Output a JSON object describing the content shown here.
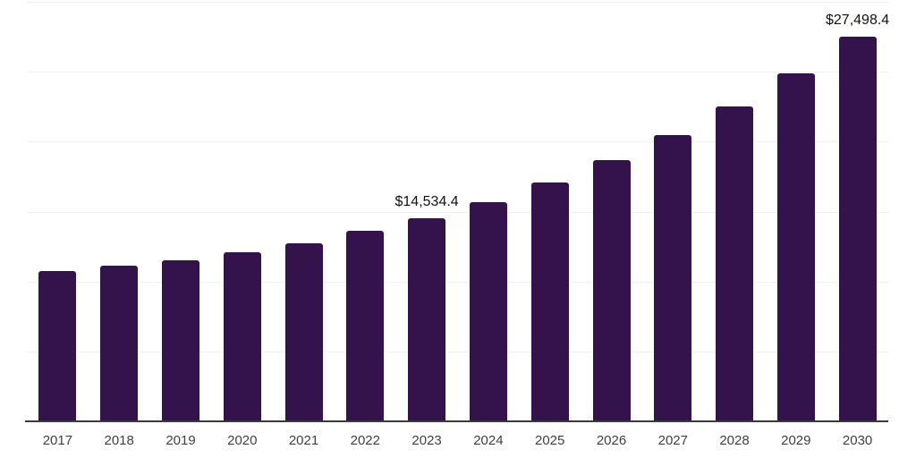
{
  "chart_data": {
    "type": "bar",
    "title": "",
    "xlabel": "",
    "ylabel": "",
    "categories": [
      "2017",
      "2018",
      "2019",
      "2020",
      "2021",
      "2022",
      "2023",
      "2024",
      "2025",
      "2026",
      "2027",
      "2028",
      "2029",
      "2030"
    ],
    "values": [
      10770,
      11110,
      11530,
      12070,
      12750,
      13610,
      14534.4,
      15690,
      17100,
      18680,
      20470,
      22540,
      24900,
      27498.4
    ],
    "data_labels": [
      {
        "index": 6,
        "text": "$14,534.4"
      },
      {
        "index": 13,
        "text": "$27,498.4"
      }
    ],
    "ylim": [
      0,
      30000
    ],
    "gridline_step": 5000,
    "grid": true,
    "legend": "none",
    "bar_color": "#34124b",
    "axis_line_color": "#3a3a3a",
    "gridline_color": "#f2f2f2",
    "value_label_color": "#111111",
    "tick_label_color": "#404040"
  }
}
